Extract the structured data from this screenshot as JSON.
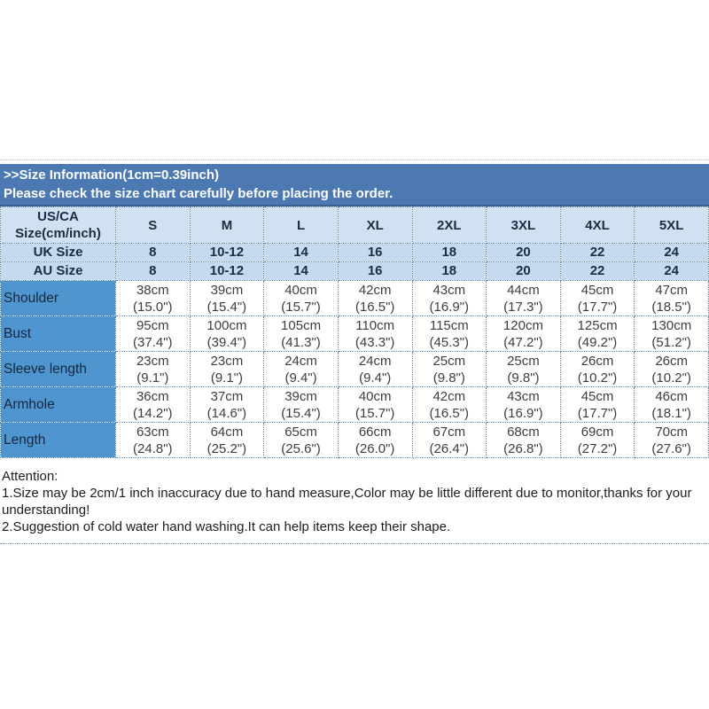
{
  "banner": {
    "title": ">>Size Information(1cm=0.39inch)",
    "subtitle": "Please check the size chart carefully before placing the order."
  },
  "size_table": {
    "corner": {
      "line1": "US/CA",
      "line2": "Size(cm/inch)"
    },
    "sizes": [
      "S",
      "M",
      "L",
      "XL",
      "2XL",
      "3XL",
      "4XL",
      "5XL"
    ],
    "uk": {
      "label": "UK Size",
      "values": [
        "8",
        "10-12",
        "14",
        "16",
        "18",
        "20",
        "22",
        "24"
      ]
    },
    "au": {
      "label": "AU Size",
      "values": [
        "8",
        "10-12",
        "14",
        "16",
        "18",
        "20",
        "22",
        "24"
      ]
    },
    "rows": [
      {
        "label": "Shoulder",
        "cells": [
          {
            "cm": "38cm",
            "in": "(15.0\")"
          },
          {
            "cm": "39cm",
            "in": "(15.4\")"
          },
          {
            "cm": "40cm",
            "in": "(15.7\")"
          },
          {
            "cm": "42cm",
            "in": "(16.5\")"
          },
          {
            "cm": "43cm",
            "in": "(16.9\")"
          },
          {
            "cm": "44cm",
            "in": "(17.3\")"
          },
          {
            "cm": "45cm",
            "in": "(17.7\")"
          },
          {
            "cm": "47cm",
            "in": "(18.5\")"
          }
        ]
      },
      {
        "label": "Bust",
        "cells": [
          {
            "cm": "95cm",
            "in": "(37.4\")"
          },
          {
            "cm": "100cm",
            "in": "(39.4\")"
          },
          {
            "cm": "105cm",
            "in": "(41.3\")"
          },
          {
            "cm": "110cm",
            "in": "(43.3\")"
          },
          {
            "cm": "115cm",
            "in": "(45.3\")"
          },
          {
            "cm": "120cm",
            "in": "(47.2\")"
          },
          {
            "cm": "125cm",
            "in": "(49.2\")"
          },
          {
            "cm": "130cm",
            "in": "(51.2\")"
          }
        ]
      },
      {
        "label": "Sleeve length",
        "cells": [
          {
            "cm": "23cm",
            "in": "(9.1\")"
          },
          {
            "cm": "23cm",
            "in": "(9.1\")"
          },
          {
            "cm": "24cm",
            "in": "(9.4\")"
          },
          {
            "cm": "24cm",
            "in": "(9.4\")"
          },
          {
            "cm": "25cm",
            "in": "(9.8\")"
          },
          {
            "cm": "25cm",
            "in": "(9.8\")"
          },
          {
            "cm": "26cm",
            "in": "(10.2\")"
          },
          {
            "cm": "26cm",
            "in": "(10.2\")"
          }
        ]
      },
      {
        "label": "Armhole",
        "cells": [
          {
            "cm": "36cm",
            "in": "(14.2\")"
          },
          {
            "cm": "37cm",
            "in": "(14.6\")"
          },
          {
            "cm": "39cm",
            "in": "(15.4\")"
          },
          {
            "cm": "40cm",
            "in": "(15.7\")"
          },
          {
            "cm": "42cm",
            "in": "(16.5\")"
          },
          {
            "cm": "43cm",
            "in": "(16.9\")"
          },
          {
            "cm": "45cm",
            "in": "(17.7\")"
          },
          {
            "cm": "46cm",
            "in": "(18.1\")"
          }
        ]
      },
      {
        "label": "Length",
        "cells": [
          {
            "cm": "63cm",
            "in": "(24.8\")"
          },
          {
            "cm": "64cm",
            "in": "(25.2\")"
          },
          {
            "cm": "65cm",
            "in": "(25.6\")"
          },
          {
            "cm": "66cm",
            "in": "(26.0\")"
          },
          {
            "cm": "67cm",
            "in": "(26.4\")"
          },
          {
            "cm": "68cm",
            "in": "(26.8\")"
          },
          {
            "cm": "69cm",
            "in": "(27.2\")"
          },
          {
            "cm": "70cm",
            "in": "(27.6\")"
          }
        ]
      }
    ]
  },
  "attention": {
    "title": "Attention:",
    "item1": "1.Size may be 2cm/1 inch inaccuracy due to hand measure,Color may be little different due to monitor,thanks for your understanding!",
    "item2": "2.Suggestion of cold water hand washing.It can help items keep their shape."
  },
  "colors": {
    "banner_bg": "#4d79b3",
    "header_row_bg": "#d0e1f3",
    "size_row_bg": "#c5d9f0",
    "label_column_bg": "#4f96d1",
    "border_dotted": "#5d87b5"
  }
}
